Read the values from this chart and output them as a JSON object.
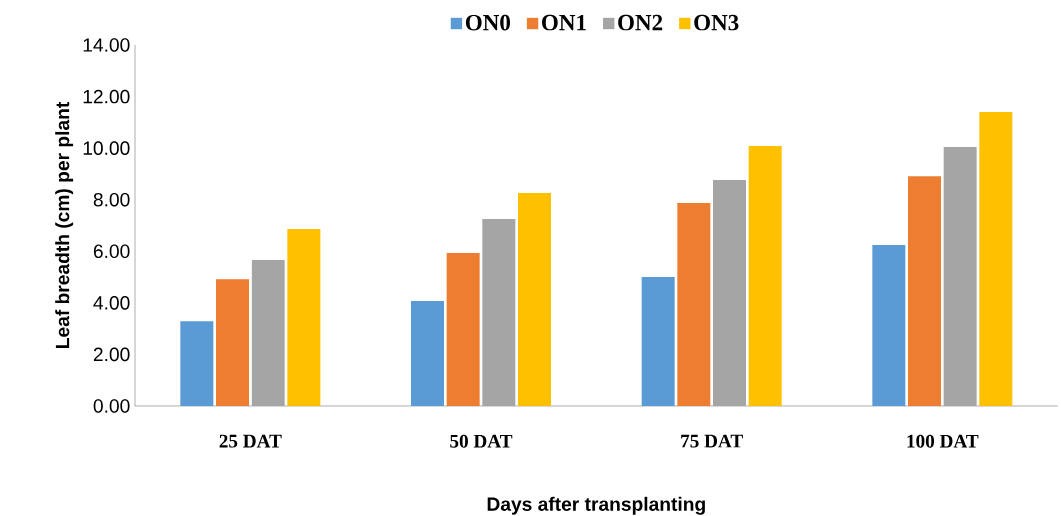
{
  "chart_data": {
    "type": "bar",
    "xlabel": "Days after transplanting",
    "ylabel": "Leaf breadth (cm) per plant",
    "categories": [
      "25 DAT",
      "50 DAT",
      "75 DAT",
      "100 DAT"
    ],
    "series": [
      {
        "name": "ON0",
        "color": "#5b9bd5",
        "values": [
          3.29,
          4.07,
          5.0,
          6.24
        ]
      },
      {
        "name": "ON1",
        "color": "#ed7d31",
        "values": [
          4.92,
          5.93,
          7.87,
          8.91
        ]
      },
      {
        "name": "ON2",
        "color": "#a5a5a5",
        "values": [
          5.66,
          7.25,
          8.76,
          10.04
        ]
      },
      {
        "name": "ON3",
        "color": "#ffc000",
        "values": [
          6.86,
          8.26,
          10.08,
          11.4
        ]
      }
    ],
    "ylim": [
      0,
      14
    ],
    "yticks": [
      {
        "value": 0,
        "label": "0.00"
      },
      {
        "value": 2,
        "label": "2.00"
      },
      {
        "value": 4,
        "label": "4.00"
      },
      {
        "value": 6,
        "label": "6.00"
      },
      {
        "value": 8,
        "label": "8.00"
      },
      {
        "value": 10,
        "label": "10.00"
      },
      {
        "value": 12,
        "label": "12.00"
      },
      {
        "value": 14,
        "label": "14.00"
      }
    ],
    "legend": "top"
  }
}
